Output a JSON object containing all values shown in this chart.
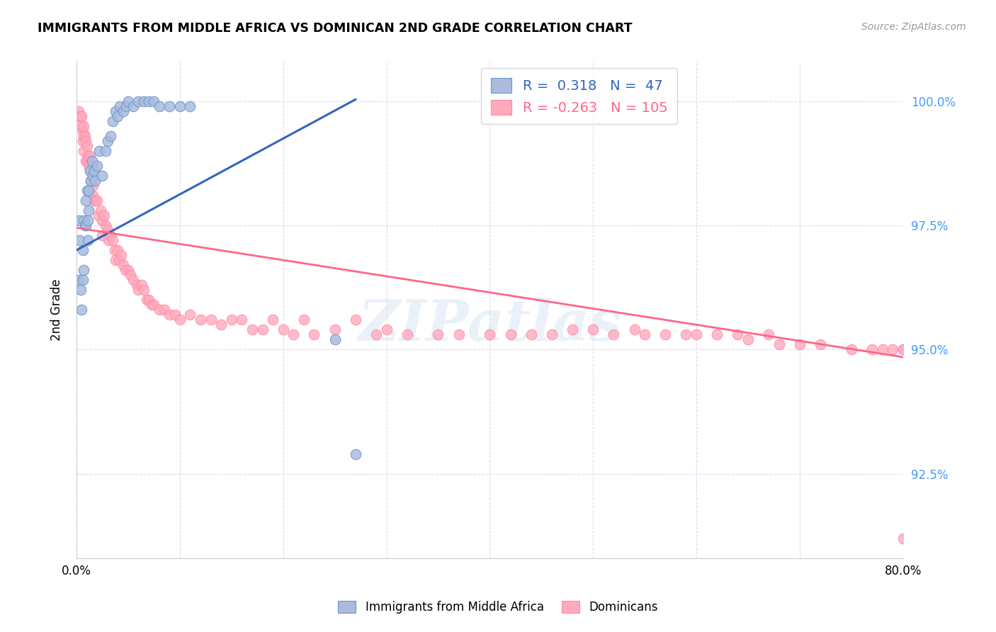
{
  "title": "IMMIGRANTS FROM MIDDLE AFRICA VS DOMINICAN 2ND GRADE CORRELATION CHART",
  "source": "Source: ZipAtlas.com",
  "xlabel": "",
  "ylabel": "2nd Grade",
  "x_min": 0.0,
  "x_max": 0.8,
  "y_min": 0.908,
  "y_max": 1.008,
  "x_ticks": [
    0.0,
    0.1,
    0.2,
    0.3,
    0.4,
    0.5,
    0.6,
    0.7,
    0.8
  ],
  "x_tick_labels": [
    "0.0%",
    "",
    "",
    "",
    "",
    "",
    "",
    "",
    "80.0%"
  ],
  "y_ticks": [
    0.925,
    0.95,
    0.975,
    1.0
  ],
  "y_tick_labels": [
    "92.5%",
    "95.0%",
    "97.5%",
    "100.0%"
  ],
  "blue_R": 0.318,
  "blue_N": 47,
  "pink_R": -0.263,
  "pink_N": 105,
  "blue_color": "#AABBDD",
  "pink_color": "#FFAABB",
  "blue_edge_color": "#6699CC",
  "pink_edge_color": "#FF88AA",
  "blue_line_color": "#3366BB",
  "pink_line_color": "#FF6688",
  "watermark": "ZIPatlas",
  "blue_line_x0": 0.0,
  "blue_line_y0": 0.97,
  "blue_line_x1": 0.27,
  "blue_line_y1": 1.0003,
  "pink_line_x0": 0.0,
  "pink_line_y0": 0.9745,
  "pink_line_x1": 0.8,
  "pink_line_y1": 0.9485,
  "blue_x": [
    0.002,
    0.003,
    0.003,
    0.004,
    0.005,
    0.006,
    0.006,
    0.007,
    0.007,
    0.008,
    0.009,
    0.009,
    0.01,
    0.011,
    0.011,
    0.012,
    0.012,
    0.013,
    0.014,
    0.015,
    0.016,
    0.017,
    0.018,
    0.02,
    0.022,
    0.025,
    0.028,
    0.03,
    0.033,
    0.035,
    0.038,
    0.04,
    0.042,
    0.045,
    0.048,
    0.05,
    0.055,
    0.06,
    0.065,
    0.07,
    0.075,
    0.08,
    0.09,
    0.1,
    0.11,
    0.25,
    0.27
  ],
  "blue_y": [
    0.964,
    0.976,
    0.972,
    0.962,
    0.958,
    0.964,
    0.97,
    0.966,
    0.976,
    0.975,
    0.98,
    0.975,
    0.982,
    0.976,
    0.972,
    0.978,
    0.982,
    0.986,
    0.984,
    0.988,
    0.985,
    0.986,
    0.984,
    0.987,
    0.99,
    0.985,
    0.99,
    0.992,
    0.993,
    0.996,
    0.998,
    0.997,
    0.999,
    0.998,
    0.999,
    1.0,
    0.999,
    1.0,
    1.0,
    1.0,
    1.0,
    0.999,
    0.999,
    0.999,
    0.999,
    0.952,
    0.929
  ],
  "pink_x": [
    0.002,
    0.003,
    0.004,
    0.005,
    0.005,
    0.006,
    0.006,
    0.007,
    0.007,
    0.007,
    0.008,
    0.009,
    0.009,
    0.01,
    0.01,
    0.011,
    0.012,
    0.013,
    0.013,
    0.014,
    0.015,
    0.016,
    0.016,
    0.017,
    0.018,
    0.02,
    0.021,
    0.023,
    0.025,
    0.025,
    0.027,
    0.028,
    0.03,
    0.031,
    0.033,
    0.035,
    0.037,
    0.038,
    0.04,
    0.041,
    0.043,
    0.045,
    0.047,
    0.05,
    0.052,
    0.055,
    0.058,
    0.06,
    0.063,
    0.065,
    0.068,
    0.07,
    0.073,
    0.075,
    0.08,
    0.085,
    0.09,
    0.095,
    0.1,
    0.11,
    0.12,
    0.13,
    0.14,
    0.15,
    0.16,
    0.17,
    0.18,
    0.19,
    0.2,
    0.21,
    0.22,
    0.23,
    0.25,
    0.27,
    0.29,
    0.3,
    0.32,
    0.35,
    0.37,
    0.4,
    0.42,
    0.44,
    0.46,
    0.48,
    0.5,
    0.52,
    0.54,
    0.55,
    0.57,
    0.59,
    0.6,
    0.62,
    0.64,
    0.65,
    0.67,
    0.68,
    0.7,
    0.72,
    0.75,
    0.77,
    0.78,
    0.79,
    0.8,
    0.8,
    0.8
  ],
  "pink_y": [
    0.998,
    0.997,
    0.997,
    0.997,
    0.995,
    0.994,
    0.992,
    0.995,
    0.993,
    0.99,
    0.993,
    0.992,
    0.988,
    0.991,
    0.988,
    0.989,
    0.987,
    0.989,
    0.986,
    0.984,
    0.987,
    0.983,
    0.981,
    0.98,
    0.98,
    0.98,
    0.977,
    0.978,
    0.976,
    0.973,
    0.977,
    0.975,
    0.974,
    0.972,
    0.973,
    0.972,
    0.97,
    0.968,
    0.97,
    0.968,
    0.969,
    0.967,
    0.966,
    0.966,
    0.965,
    0.964,
    0.963,
    0.962,
    0.963,
    0.962,
    0.96,
    0.96,
    0.959,
    0.959,
    0.958,
    0.958,
    0.957,
    0.957,
    0.956,
    0.957,
    0.956,
    0.956,
    0.955,
    0.956,
    0.956,
    0.954,
    0.954,
    0.956,
    0.954,
    0.953,
    0.956,
    0.953,
    0.954,
    0.956,
    0.953,
    0.954,
    0.953,
    0.953,
    0.953,
    0.953,
    0.953,
    0.953,
    0.953,
    0.954,
    0.954,
    0.953,
    0.954,
    0.953,
    0.953,
    0.953,
    0.953,
    0.953,
    0.953,
    0.952,
    0.953,
    0.951,
    0.951,
    0.951,
    0.95,
    0.95,
    0.95,
    0.95,
    0.95,
    0.95,
    0.912
  ]
}
